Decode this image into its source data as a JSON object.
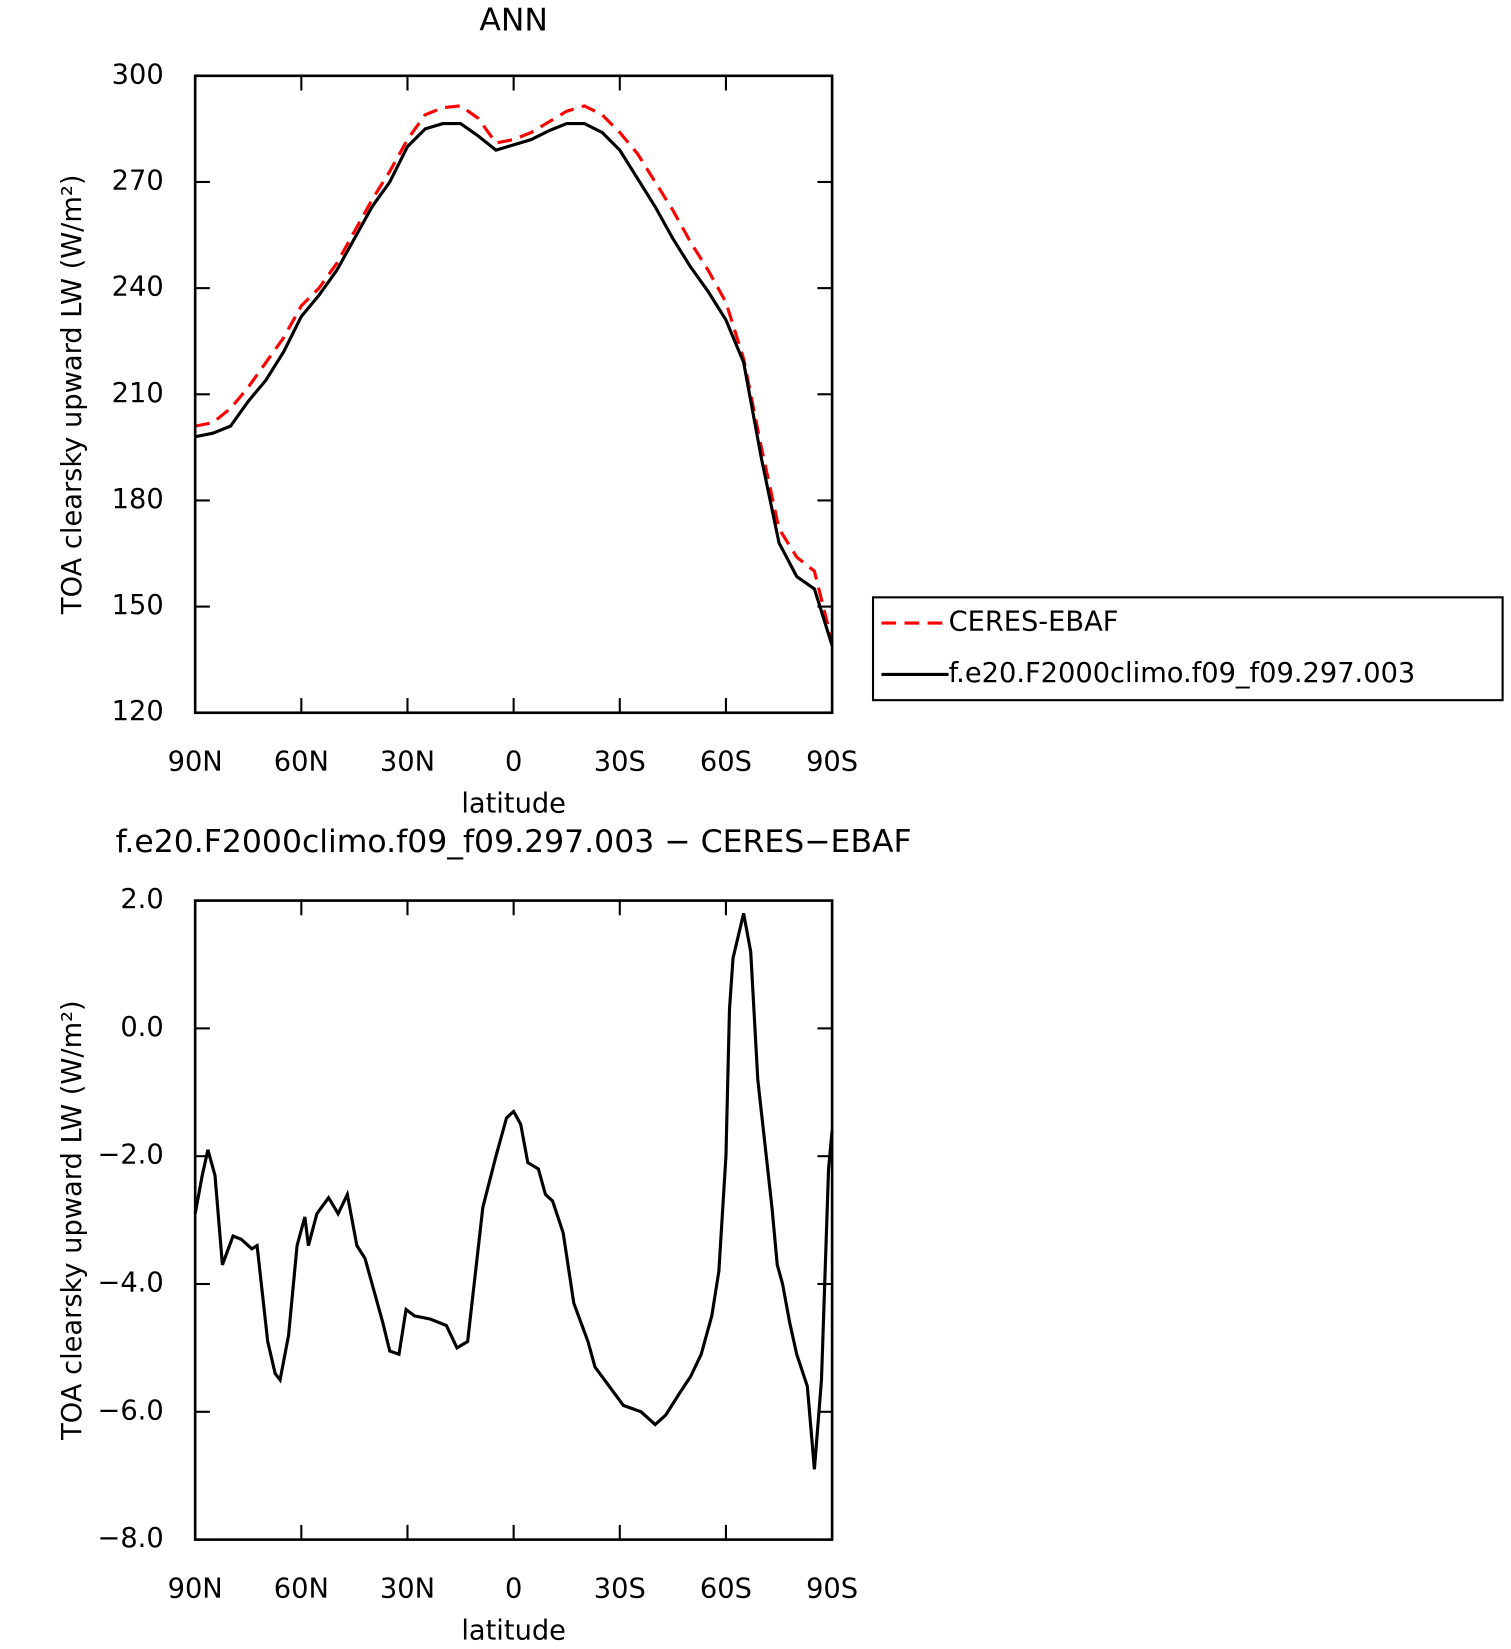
{
  "chart_data": [
    {
      "type": "line",
      "title": "ANN",
      "xlabel": "latitude",
      "ylabel": "TOA clearsky upward LW (W/m²)",
      "x": [
        90,
        85,
        80,
        75,
        70,
        65,
        60,
        55,
        50,
        45,
        40,
        35,
        30,
        25,
        20,
        15,
        10,
        5,
        0,
        -5,
        -10,
        -15,
        -20,
        -25,
        -30,
        -35,
        -40,
        -45,
        -50,
        -55,
        -60,
        -65,
        -70,
        -75,
        -80,
        -85,
        -90
      ],
      "series": [
        {
          "name": "CERES-EBAF",
          "color": "#ff0000",
          "style": "dashed",
          "values": [
            201,
            202,
            206,
            212,
            219,
            226,
            235,
            240,
            247,
            256,
            265,
            273,
            282,
            289,
            291,
            291.5,
            288,
            281,
            282,
            284,
            287,
            290,
            291.5,
            289,
            284,
            278,
            270,
            262,
            253,
            245,
            236,
            220,
            195,
            172,
            164,
            160,
            140
          ]
        },
        {
          "name": "f.e20.F2000climo.f09_f09.297.003",
          "color": "#000000",
          "style": "solid",
          "values": [
            198,
            199,
            201,
            208,
            214,
            222,
            232,
            238,
            245,
            254,
            263,
            270,
            280,
            285,
            286.5,
            286.5,
            283,
            279,
            280.5,
            282,
            284.5,
            286.5,
            286.5,
            284,
            279,
            271,
            263,
            254,
            246,
            239,
            231,
            219,
            192,
            168,
            158.5,
            155,
            139
          ]
        }
      ],
      "xlim": [
        90,
        -90
      ],
      "xticks": [
        {
          "value": 90,
          "label": "90N"
        },
        {
          "value": 60,
          "label": "60N"
        },
        {
          "value": 30,
          "label": "30N"
        },
        0,
        {
          "value": -30,
          "label": "30S"
        },
        {
          "value": -60,
          "label": "60S"
        },
        {
          "value": -90,
          "label": "90S"
        }
      ],
      "ylim": [
        120,
        300
      ],
      "yticks": [
        120,
        150,
        180,
        210,
        240,
        270,
        300
      ],
      "legend": "right"
    },
    {
      "type": "line",
      "title": "f.e20.F2000climo.f09_f09.297.003 − CERES−EBAF",
      "xlabel": "latitude",
      "ylabel": "TOA clearsky upward LW (W/m²)",
      "x": [
        90,
        88,
        86.4,
        84.4,
        82.3,
        79.3,
        77,
        74,
        72.5,
        69.5,
        67.4,
        66,
        63.6,
        61.2,
        59,
        58,
        55.6,
        52.3,
        49.6,
        47,
        44.3,
        42,
        40,
        37,
        35,
        32.4,
        30.4,
        28,
        23.5,
        19,
        16,
        13,
        8.7,
        5,
        2,
        0,
        -2,
        -4,
        -7,
        -9,
        -11,
        -14,
        -17,
        -19,
        -21,
        -23,
        -27,
        -31,
        -36,
        -40,
        -43,
        -47,
        -50,
        -53,
        -56,
        -58,
        -60,
        -61,
        -62,
        -65,
        -67,
        -69,
        -73,
        -74.5,
        -76,
        -78,
        -80,
        -83,
        -85,
        -87,
        -89,
        -90
      ],
      "series": [
        {
          "name": "f.e20.F2000climo.f09_f09.297.003 − CERES−EBAF",
          "color": "#000000",
          "style": "solid",
          "values": [
            -2.9,
            -2.3,
            -1.9,
            -2.3,
            -3.7,
            -3.25,
            -3.3,
            -3.45,
            -3.4,
            -4.9,
            -5.4,
            -5.5,
            -4.8,
            -3.4,
            -2.95,
            -3.4,
            -2.9,
            -2.65,
            -2.9,
            -2.6,
            -3.4,
            -3.6,
            -4.0,
            -4.6,
            -5.05,
            -5.1,
            -4.4,
            -4.5,
            -4.55,
            -4.65,
            -5.0,
            -4.9,
            -2.8,
            -2.0,
            -1.4,
            -1.3,
            -1.5,
            -2.1,
            -2.2,
            -2.6,
            -2.7,
            -3.2,
            -4.3,
            -4.6,
            -4.9,
            -5.3,
            -5.6,
            -5.9,
            -6.0,
            -6.2,
            -6.05,
            -5.7,
            -5.45,
            -5.1,
            -4.5,
            -3.8,
            -2.0,
            0.3,
            1.1,
            1.8,
            1.2,
            -0.8,
            -2.8,
            -3.7,
            -4.0,
            -4.6,
            -5.1,
            -5.6,
            -6.9,
            -5.5,
            -2.2,
            -1.6
          ]
        }
      ],
      "xlim": [
        90,
        -90
      ],
      "xticks": [
        {
          "value": 90,
          "label": "90N"
        },
        {
          "value": 60,
          "label": "60N"
        },
        {
          "value": 30,
          "label": "30N"
        },
        0,
        {
          "value": -30,
          "label": "30S"
        },
        {
          "value": -60,
          "label": "60S"
        },
        {
          "value": -90,
          "label": "90S"
        }
      ],
      "ylim": [
        -8,
        2
      ],
      "yticks": [
        {
          "value": -8,
          "label": "−8.0"
        },
        {
          "value": -6,
          "label": "−6.0"
        },
        {
          "value": -4,
          "label": "−4.0"
        },
        {
          "value": -2,
          "label": "−2.0"
        },
        {
          "value": 0,
          "label": "0.0"
        },
        {
          "value": 2,
          "label": "2.0"
        }
      ]
    }
  ]
}
